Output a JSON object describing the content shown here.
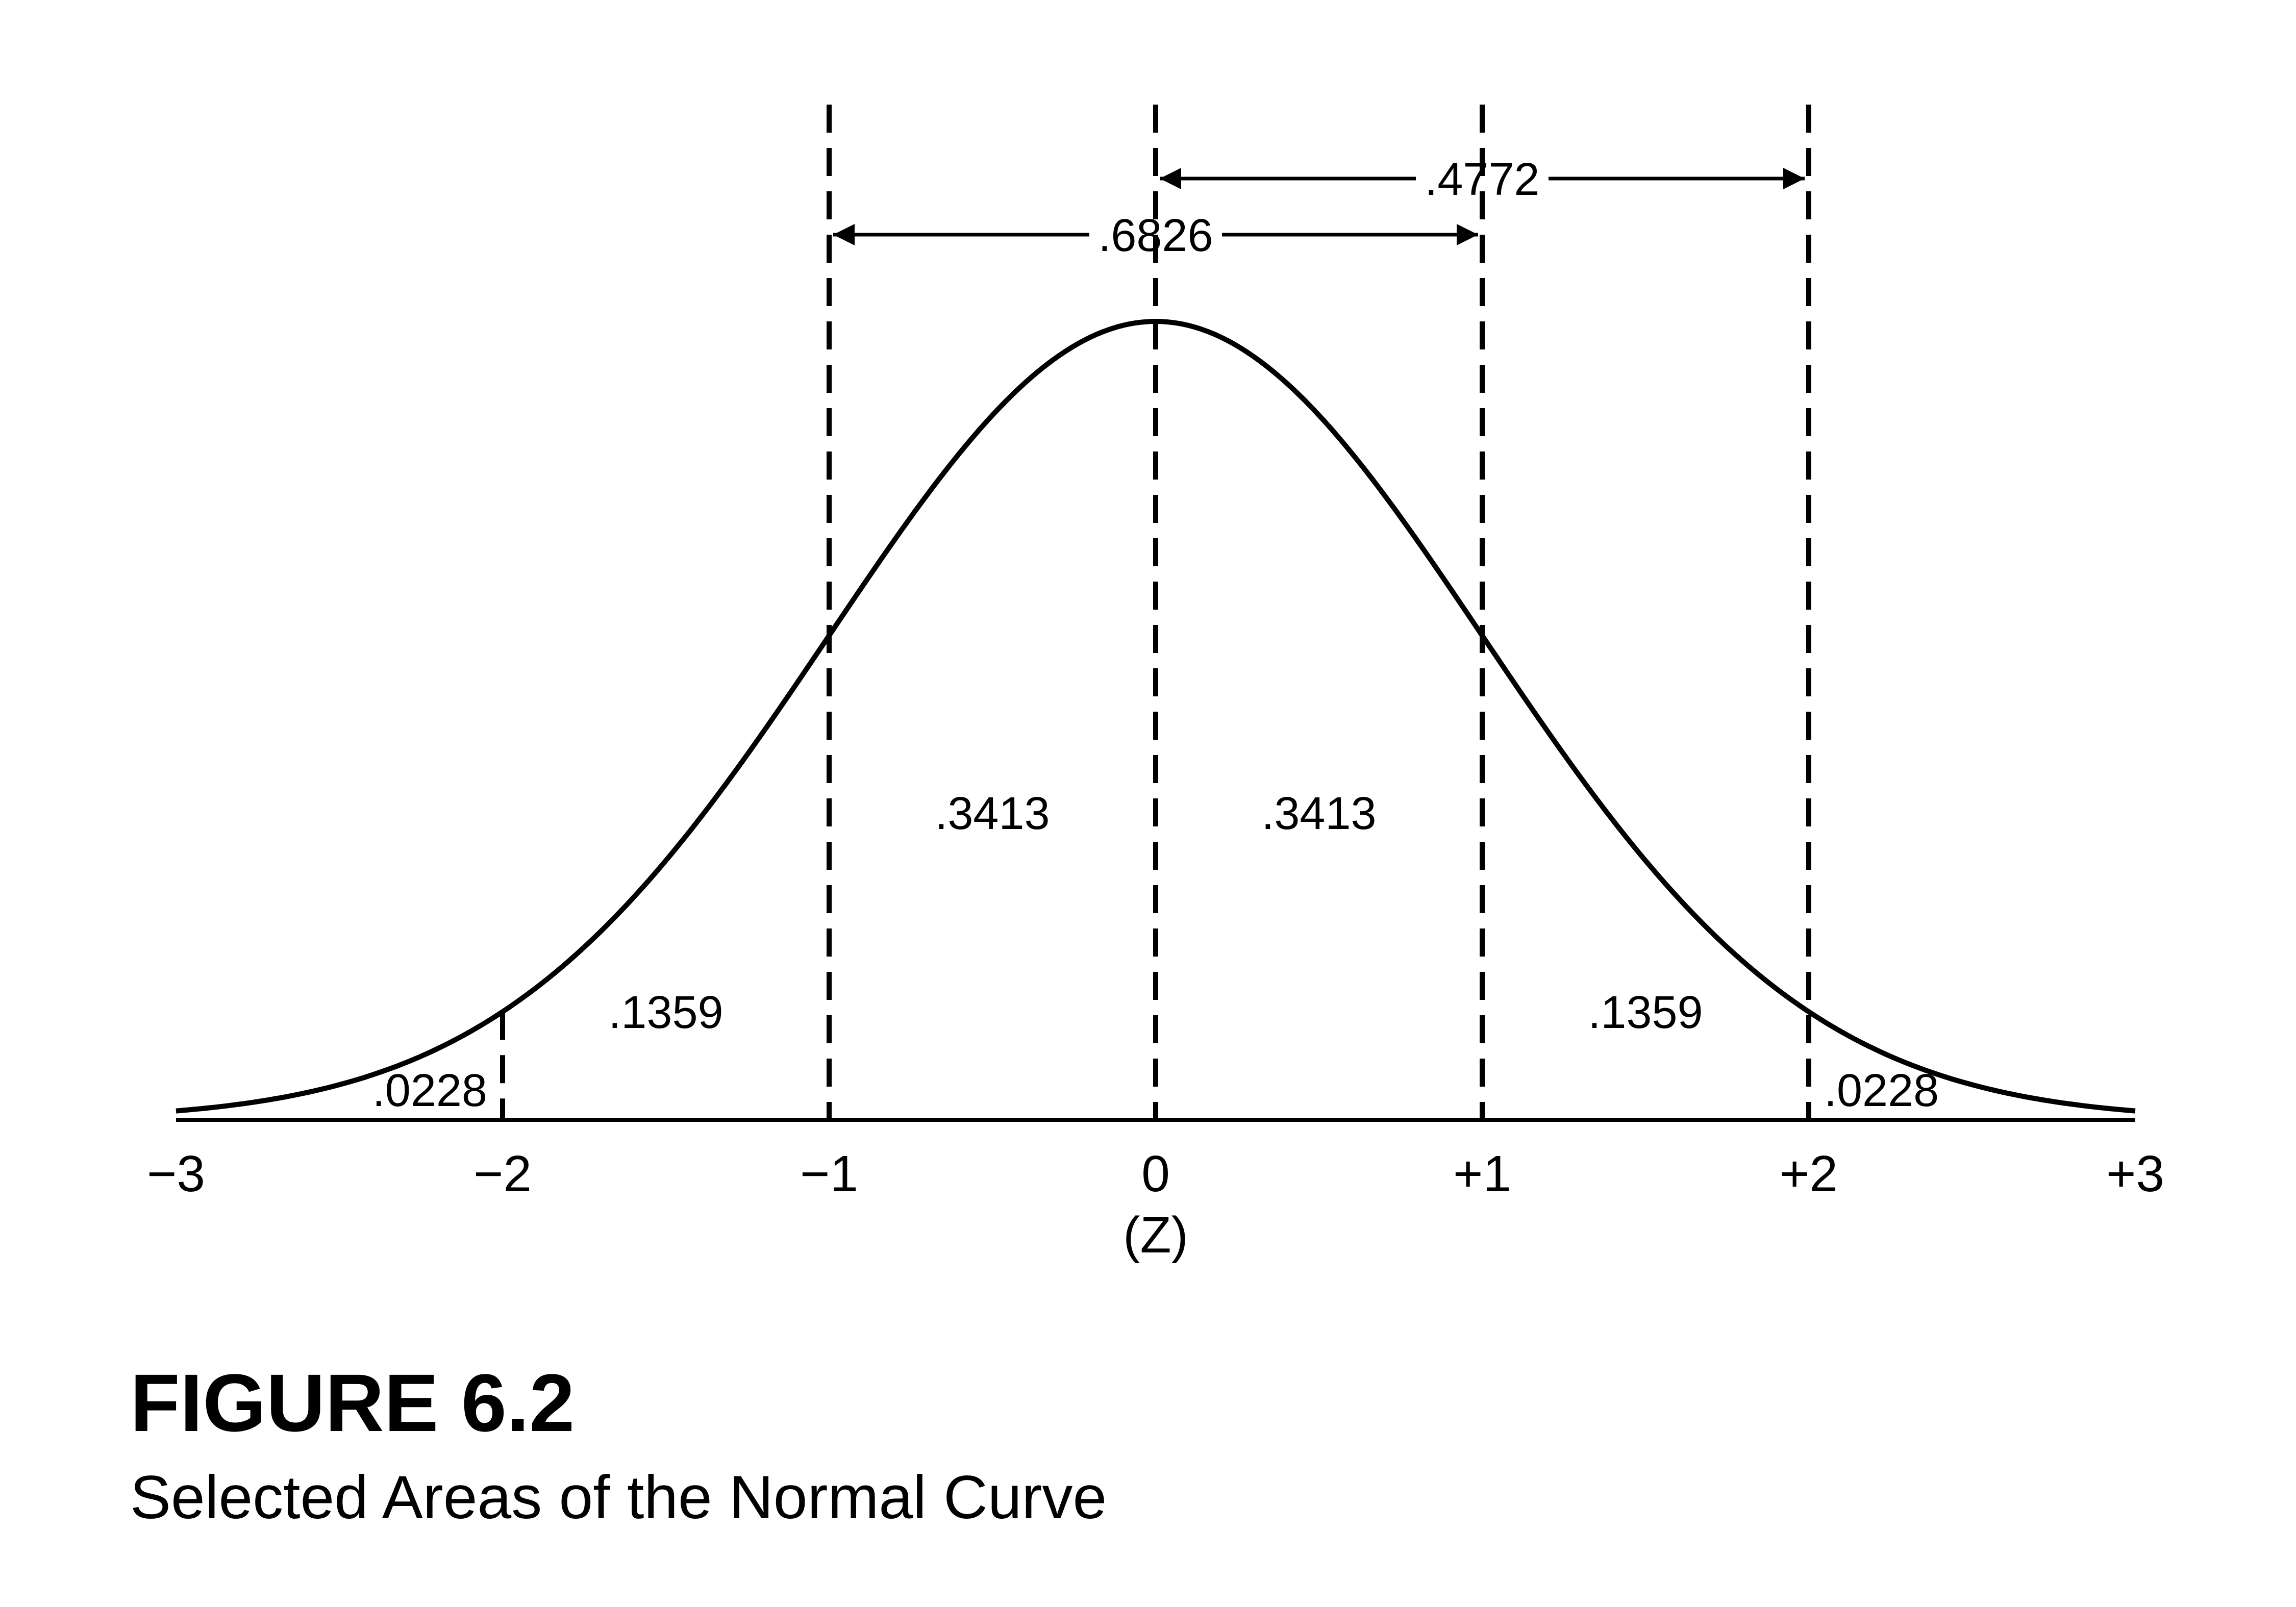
{
  "figure": {
    "label": "FIGURE 6.2",
    "caption": "Selected Areas of the Normal Curve"
  },
  "chart_data": {
    "type": "area",
    "title": "",
    "xlabel": "(Z)",
    "ylabel": "",
    "xlim": [
      -3,
      3
    ],
    "grid": false,
    "x_ticks": [
      {
        "value": -3,
        "label": "−3"
      },
      {
        "value": -2,
        "label": "−2"
      },
      {
        "value": -1,
        "label": "−1"
      },
      {
        "value": 0,
        "label": "0"
      },
      {
        "value": 1,
        "label": "+1"
      },
      {
        "value": 2,
        "label": "+2"
      },
      {
        "value": 3,
        "label": "+3"
      }
    ],
    "curve": {
      "distribution": "standard normal",
      "mean": 0,
      "sd": 1
    },
    "dividers": [
      -2,
      -1,
      0,
      1,
      2
    ],
    "regions": [
      {
        "from": -3,
        "to": -2,
        "area": ".0228"
      },
      {
        "from": -2,
        "to": -1,
        "area": ".1359"
      },
      {
        "from": -1,
        "to": 0,
        "area": ".3413"
      },
      {
        "from": 0,
        "to": 1,
        "area": ".3413"
      },
      {
        "from": 1,
        "to": 2,
        "area": ".1359"
      },
      {
        "from": 2,
        "to": 3,
        "area": ".0228"
      }
    ],
    "spans": [
      {
        "from": 0,
        "to": 2,
        "area": ".4772"
      },
      {
        "from": -1,
        "to": 1,
        "area": ".6826"
      }
    ]
  }
}
